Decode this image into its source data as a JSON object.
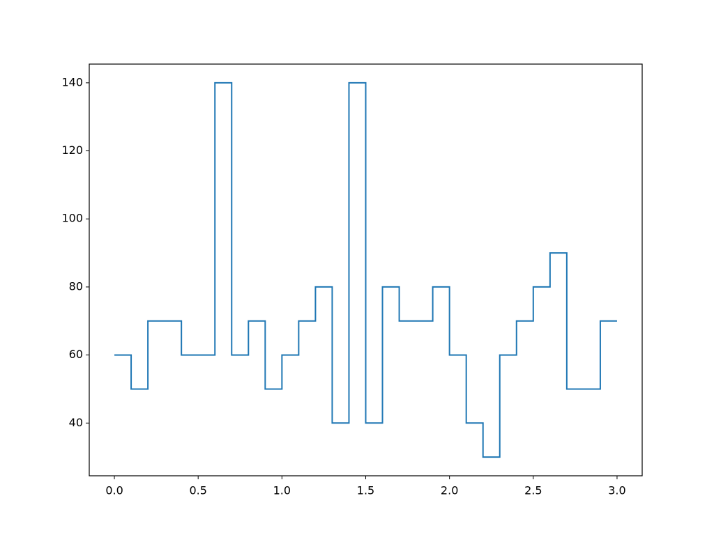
{
  "chart_data": {
    "type": "line",
    "step": "post",
    "color": "#1f77b4",
    "x": [
      0,
      0.1,
      0.2,
      0.3,
      0.4,
      0.5,
      0.6,
      0.7,
      0.8,
      0.9,
      1.0,
      1.1,
      1.2,
      1.3,
      1.4,
      1.5,
      1.6,
      1.7,
      1.8,
      1.9,
      2.0,
      2.1,
      2.2,
      2.3,
      2.4,
      2.5,
      2.6,
      2.7,
      2.8,
      2.9,
      3.0
    ],
    "values": [
      60,
      50,
      70,
      70,
      60,
      60,
      140,
      60,
      70,
      50,
      60,
      70,
      80,
      40,
      140,
      40,
      80,
      70,
      70,
      80,
      60,
      40,
      30,
      60,
      70,
      80,
      90,
      50,
      50,
      70,
      70
    ],
    "xlim": [
      -0.15,
      3.15
    ],
    "xticks": [
      {
        "value": 0,
        "label": "0.0"
      },
      0.5,
      {
        "value": 1,
        "label": "1.0"
      },
      1.5,
      {
        "value": 2,
        "label": "2.0"
      },
      2.5,
      {
        "value": 3,
        "label": "3.0"
      }
    ],
    "ylim": [
      24.5,
      145.5
    ],
    "yticks": [
      40,
      60,
      80,
      100,
      120,
      140
    ],
    "grid": false
  }
}
